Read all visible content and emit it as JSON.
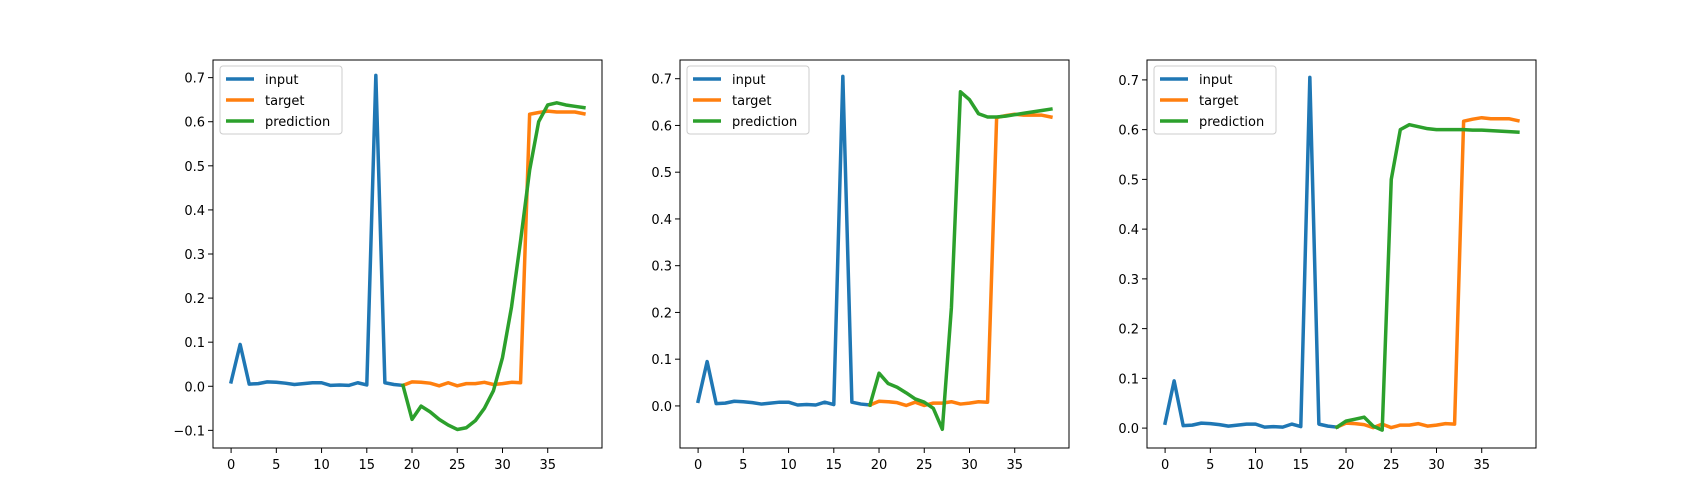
{
  "colors": {
    "input": "#1f77b4",
    "target": "#ff7f0e",
    "prediction": "#2ca02c",
    "axes": "#000000",
    "legend_border": "#cccccc"
  },
  "chart_data": [
    {
      "type": "line",
      "title": "",
      "xlabel": "",
      "ylabel": "",
      "xlim": [
        -2,
        41
      ],
      "ylim": [
        -0.14,
        0.74
      ],
      "xticks": [
        0,
        5,
        10,
        15,
        20,
        25,
        30,
        35
      ],
      "yticks": [
        -0.1,
        0.0,
        0.1,
        0.2,
        0.3,
        0.4,
        0.5,
        0.6,
        0.7
      ],
      "ytick_labels": [
        "−0.1",
        "0.0",
        "0.1",
        "0.2",
        "0.3",
        "0.4",
        "0.5",
        "0.6",
        "0.7"
      ],
      "xtick_labels": [
        "0",
        "5",
        "10",
        "15",
        "20",
        "25",
        "30",
        "35"
      ],
      "grid": false,
      "legend": "upper-left",
      "series": [
        {
          "name": "input",
          "color": "#1f77b4",
          "x": [
            0,
            1,
            2,
            3,
            4,
            5,
            6,
            7,
            8,
            9,
            10,
            11,
            12,
            13,
            14,
            15,
            16,
            17,
            18,
            19
          ],
          "y": [
            0.01,
            0.095,
            0.005,
            0.006,
            0.01,
            0.009,
            0.007,
            0.004,
            0.006,
            0.008,
            0.008,
            0.002,
            0.003,
            0.002,
            0.008,
            0.003,
            0.705,
            0.008,
            0.004,
            0.002
          ]
        },
        {
          "name": "target",
          "color": "#ff7f0e",
          "x": [
            19,
            20,
            21,
            22,
            23,
            24,
            25,
            26,
            27,
            28,
            29,
            30,
            31,
            32,
            33,
            34,
            35,
            36,
            37,
            38,
            39
          ],
          "y": [
            0.002,
            0.01,
            0.009,
            0.007,
            0.001,
            0.008,
            0.001,
            0.006,
            0.006,
            0.009,
            0.004,
            0.006,
            0.009,
            0.008,
            0.617,
            0.621,
            0.624,
            0.622,
            0.622,
            0.622,
            0.618
          ]
        },
        {
          "name": "prediction",
          "color": "#2ca02c",
          "x": [
            19,
            20,
            21,
            22,
            23,
            24,
            25,
            26,
            27,
            28,
            29,
            30,
            31,
            32,
            33,
            34,
            35,
            36,
            37,
            38,
            39
          ],
          "y": [
            0.002,
            -0.075,
            -0.045,
            -0.058,
            -0.075,
            -0.088,
            -0.098,
            -0.094,
            -0.078,
            -0.05,
            -0.01,
            0.065,
            0.18,
            0.33,
            0.49,
            0.6,
            0.638,
            0.643,
            0.638,
            0.635,
            0.632
          ]
        }
      ]
    },
    {
      "type": "line",
      "title": "",
      "xlabel": "",
      "ylabel": "",
      "xlim": [
        -2,
        41
      ],
      "ylim": [
        -0.09,
        0.74
      ],
      "xticks": [
        0,
        5,
        10,
        15,
        20,
        25,
        30,
        35
      ],
      "yticks": [
        0.0,
        0.1,
        0.2,
        0.3,
        0.4,
        0.5,
        0.6,
        0.7
      ],
      "ytick_labels": [
        "0.0",
        "0.1",
        "0.2",
        "0.3",
        "0.4",
        "0.5",
        "0.6",
        "0.7"
      ],
      "xtick_labels": [
        "0",
        "5",
        "10",
        "15",
        "20",
        "25",
        "30",
        "35"
      ],
      "grid": false,
      "legend": "upper-left",
      "series": [
        {
          "name": "input",
          "color": "#1f77b4",
          "x": [
            0,
            1,
            2,
            3,
            4,
            5,
            6,
            7,
            8,
            9,
            10,
            11,
            12,
            13,
            14,
            15,
            16,
            17,
            18,
            19
          ],
          "y": [
            0.01,
            0.095,
            0.005,
            0.006,
            0.01,
            0.009,
            0.007,
            0.004,
            0.006,
            0.008,
            0.008,
            0.002,
            0.003,
            0.002,
            0.008,
            0.003,
            0.705,
            0.008,
            0.004,
            0.002
          ]
        },
        {
          "name": "target",
          "color": "#ff7f0e",
          "x": [
            19,
            20,
            21,
            22,
            23,
            24,
            25,
            26,
            27,
            28,
            29,
            30,
            31,
            32,
            33,
            34,
            35,
            36,
            37,
            38,
            39
          ],
          "y": [
            0.002,
            0.01,
            0.009,
            0.007,
            0.001,
            0.008,
            0.001,
            0.006,
            0.006,
            0.009,
            0.004,
            0.006,
            0.009,
            0.008,
            0.617,
            0.621,
            0.624,
            0.622,
            0.622,
            0.622,
            0.618
          ]
        },
        {
          "name": "prediction",
          "color": "#2ca02c",
          "x": [
            19,
            20,
            21,
            22,
            23,
            24,
            25,
            26,
            27,
            28,
            29,
            30,
            31,
            32,
            33,
            34,
            35,
            36,
            37,
            38,
            39
          ],
          "y": [
            0.002,
            0.07,
            0.048,
            0.04,
            0.028,
            0.015,
            0.008,
            -0.005,
            -0.05,
            0.21,
            0.672,
            0.655,
            0.625,
            0.618,
            0.618,
            0.62,
            0.623,
            0.626,
            0.629,
            0.632,
            0.635
          ]
        }
      ]
    },
    {
      "type": "line",
      "title": "",
      "xlabel": "",
      "ylabel": "",
      "xlim": [
        -2,
        41
      ],
      "ylim": [
        -0.04,
        0.74
      ],
      "xticks": [
        0,
        5,
        10,
        15,
        20,
        25,
        30,
        35
      ],
      "yticks": [
        0.0,
        0.1,
        0.2,
        0.3,
        0.4,
        0.5,
        0.6,
        0.7
      ],
      "ytick_labels": [
        "0.0",
        "0.1",
        "0.2",
        "0.3",
        "0.4",
        "0.5",
        "0.6",
        "0.7"
      ],
      "xtick_labels": [
        "0",
        "5",
        "10",
        "15",
        "20",
        "25",
        "30",
        "35"
      ],
      "grid": false,
      "legend": "upper-left",
      "series": [
        {
          "name": "input",
          "color": "#1f77b4",
          "x": [
            0,
            1,
            2,
            3,
            4,
            5,
            6,
            7,
            8,
            9,
            10,
            11,
            12,
            13,
            14,
            15,
            16,
            17,
            18,
            19
          ],
          "y": [
            0.01,
            0.095,
            0.005,
            0.006,
            0.01,
            0.009,
            0.007,
            0.004,
            0.006,
            0.008,
            0.008,
            0.002,
            0.003,
            0.002,
            0.008,
            0.003,
            0.705,
            0.008,
            0.004,
            0.002
          ]
        },
        {
          "name": "target",
          "color": "#ff7f0e",
          "x": [
            19,
            20,
            21,
            22,
            23,
            24,
            25,
            26,
            27,
            28,
            29,
            30,
            31,
            32,
            33,
            34,
            35,
            36,
            37,
            38,
            39
          ],
          "y": [
            0.002,
            0.01,
            0.009,
            0.007,
            0.001,
            0.008,
            0.001,
            0.006,
            0.006,
            0.009,
            0.004,
            0.006,
            0.009,
            0.008,
            0.617,
            0.621,
            0.624,
            0.622,
            0.622,
            0.622,
            0.618
          ]
        },
        {
          "name": "prediction",
          "color": "#2ca02c",
          "x": [
            19,
            20,
            21,
            22,
            23,
            24,
            25,
            26,
            27,
            28,
            29,
            30,
            31,
            32,
            33,
            34,
            35,
            36,
            37,
            38,
            39
          ],
          "y": [
            0.002,
            0.014,
            0.018,
            0.022,
            0.004,
            -0.004,
            0.5,
            0.6,
            0.61,
            0.606,
            0.602,
            0.6,
            0.6,
            0.6,
            0.6,
            0.599,
            0.599,
            0.598,
            0.597,
            0.596,
            0.595
          ]
        }
      ]
    }
  ]
}
